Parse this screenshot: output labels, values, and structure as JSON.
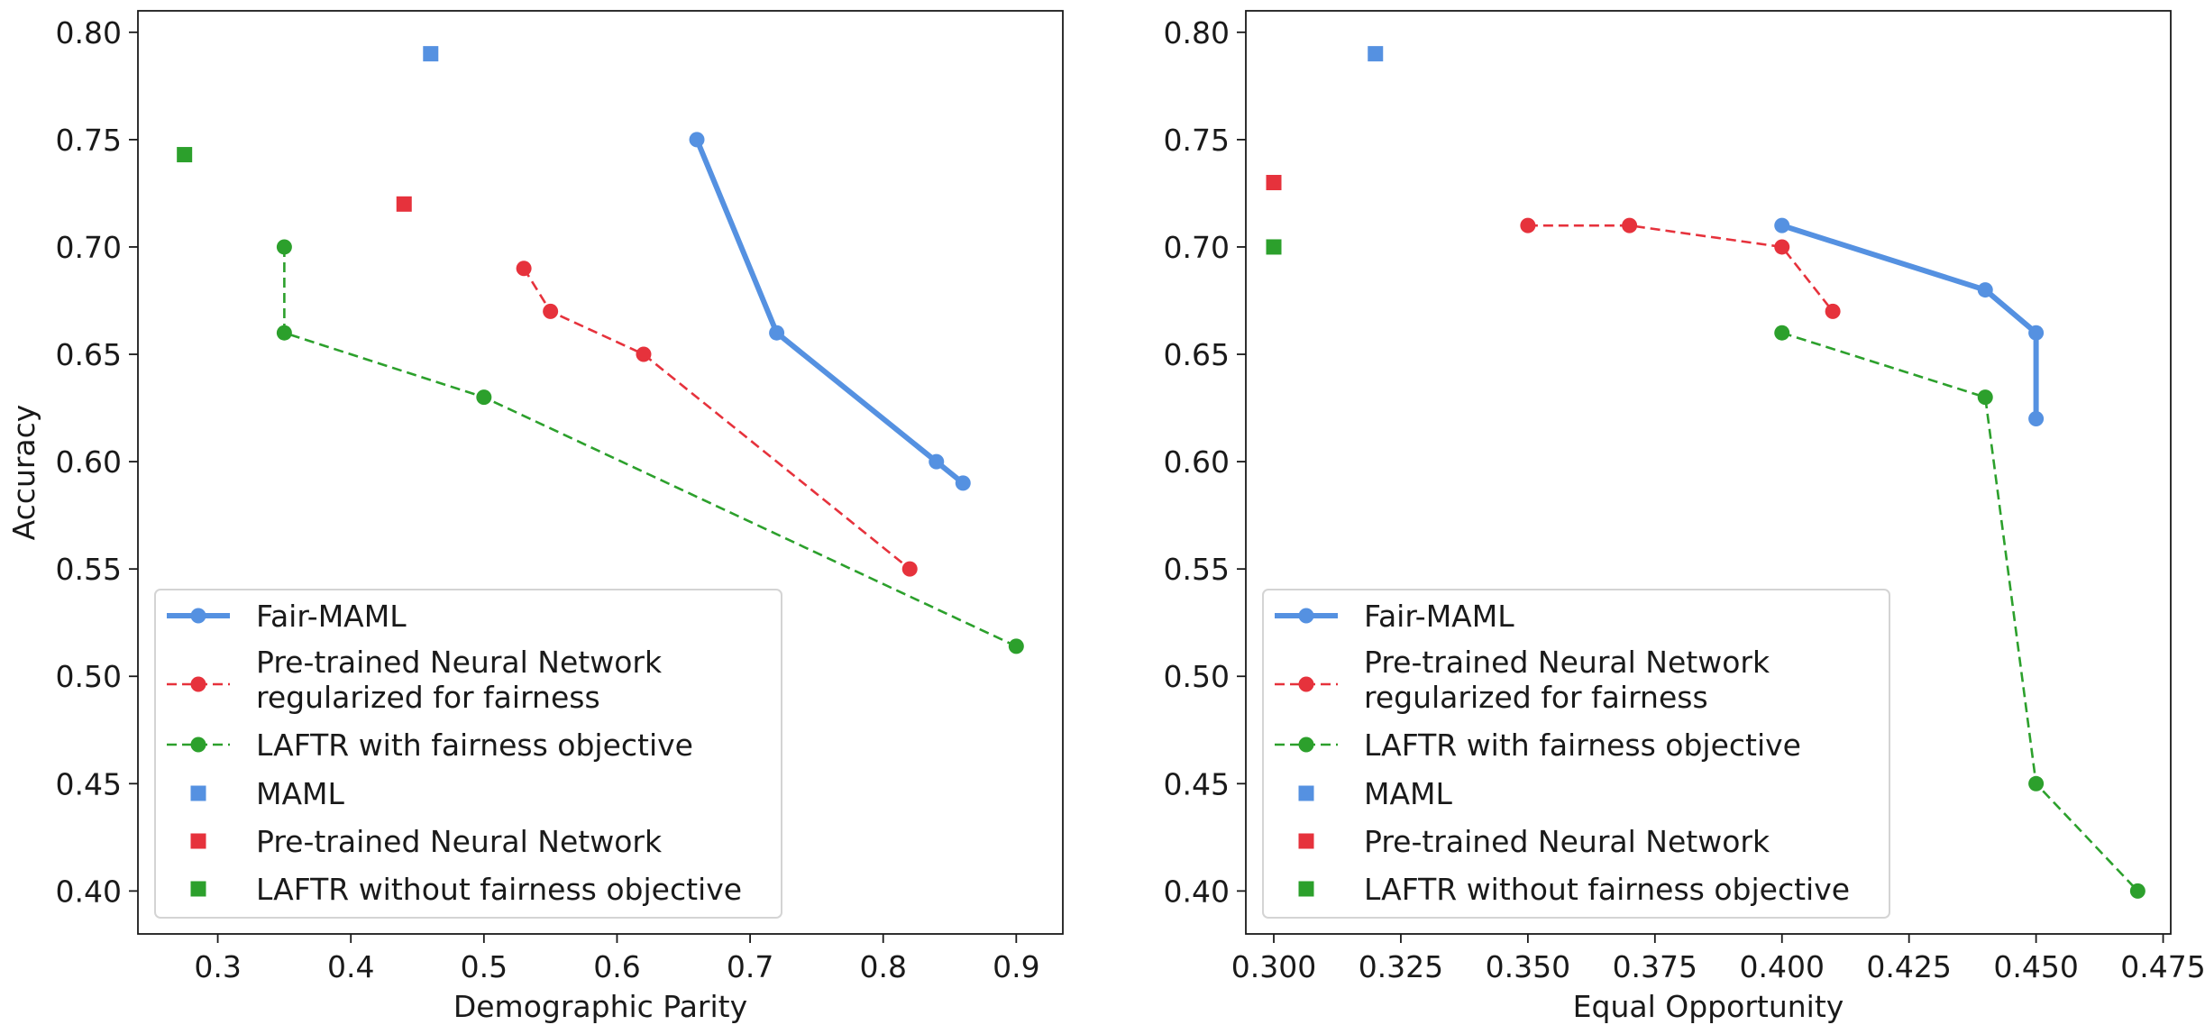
{
  "chart_data": [
    {
      "type": "line",
      "title": "",
      "xlabel": "Demographic Parity",
      "ylabel": "Accuracy",
      "xlim": [
        0.24,
        0.935
      ],
      "ylim": [
        0.38,
        0.81
      ],
      "xticks": [
        0.3,
        0.4,
        0.5,
        0.6,
        0.7,
        0.8,
        0.9
      ],
      "xtick_labels": [
        "0.3",
        "0.4",
        "0.5",
        "0.6",
        "0.7",
        "0.8",
        "0.9"
      ],
      "yticks": [
        0.4,
        0.45,
        0.5,
        0.55,
        0.6,
        0.65,
        0.7,
        0.75,
        0.8
      ],
      "ytick_labels": [
        "0.40",
        "0.45",
        "0.50",
        "0.55",
        "0.60",
        "0.65",
        "0.70",
        "0.75",
        "0.80"
      ],
      "grid": false,
      "legend_position": "lower-left",
      "series": [
        {
          "name": "Fair-MAML",
          "style": "solid-line-circle",
          "color": "#5591e1",
          "x": [
            0.66,
            0.72,
            0.84,
            0.86
          ],
          "y": [
            0.75,
            0.66,
            0.6,
            0.59
          ]
        },
        {
          "name": "Pre-trained Neural Network regularized for fairness",
          "legend_lines": [
            "Pre-trained Neural Network",
            "regularized for fairness"
          ],
          "style": "dashed-line-circle",
          "color": "#e6323c",
          "x": [
            0.53,
            0.55,
            0.62,
            0.82
          ],
          "y": [
            0.69,
            0.67,
            0.65,
            0.55
          ]
        },
        {
          "name": "LAFTR with fairness objective",
          "style": "dashed-line-circle",
          "color": "#2ca02c",
          "x": [
            0.35,
            0.35,
            0.5,
            0.9
          ],
          "y": [
            0.7,
            0.66,
            0.63,
            0.514
          ]
        },
        {
          "name": "MAML",
          "style": "square",
          "color": "#5591e1",
          "x": [
            0.46
          ],
          "y": [
            0.79
          ]
        },
        {
          "name": "Pre-trained Neural Network",
          "style": "square",
          "color": "#e6323c",
          "x": [
            0.44
          ],
          "y": [
            0.72
          ]
        },
        {
          "name": "LAFTR without fairness objective",
          "style": "square",
          "color": "#2ca02c",
          "x": [
            0.275
          ],
          "y": [
            0.743
          ]
        }
      ]
    },
    {
      "type": "line",
      "title": "",
      "xlabel": "Equal Opportunity",
      "ylabel": "",
      "xlim": [
        0.2945,
        0.4765
      ],
      "ylim": [
        0.38,
        0.81
      ],
      "xticks": [
        0.3,
        0.325,
        0.35,
        0.375,
        0.4,
        0.425,
        0.45,
        0.475
      ],
      "xtick_labels": [
        "0.300",
        "0.325",
        "0.350",
        "0.375",
        "0.400",
        "0.425",
        "0.450",
        "0.475"
      ],
      "yticks": [
        0.4,
        0.45,
        0.5,
        0.55,
        0.6,
        0.65,
        0.7,
        0.75,
        0.8
      ],
      "ytick_labels": [
        "0.40",
        "0.45",
        "0.50",
        "0.55",
        "0.60",
        "0.65",
        "0.70",
        "0.75",
        "0.80"
      ],
      "grid": false,
      "legend_position": "lower-left",
      "series": [
        {
          "name": "Fair-MAML",
          "style": "solid-line-circle",
          "color": "#5591e1",
          "x": [
            0.4,
            0.44,
            0.45,
            0.45
          ],
          "y": [
            0.71,
            0.68,
            0.66,
            0.62
          ]
        },
        {
          "name": "Pre-trained Neural Network regularized for fairness",
          "legend_lines": [
            "Pre-trained Neural Network",
            "regularized for fairness"
          ],
          "style": "dashed-line-circle",
          "color": "#e6323c",
          "x": [
            0.35,
            0.37,
            0.4,
            0.41
          ],
          "y": [
            0.71,
            0.71,
            0.7,
            0.67
          ]
        },
        {
          "name": "LAFTR with fairness objective",
          "style": "dashed-line-circle",
          "color": "#2ca02c",
          "x": [
            0.4,
            0.44,
            0.45,
            0.47
          ],
          "y": [
            0.66,
            0.63,
            0.45,
            0.4
          ]
        },
        {
          "name": "MAML",
          "style": "square",
          "color": "#5591e1",
          "x": [
            0.32
          ],
          "y": [
            0.79
          ]
        },
        {
          "name": "Pre-trained Neural Network",
          "style": "square",
          "color": "#e6323c",
          "x": [
            0.3
          ],
          "y": [
            0.73
          ]
        },
        {
          "name": "LAFTR without fairness objective",
          "style": "square",
          "color": "#2ca02c",
          "x": [
            0.3
          ],
          "y": [
            0.7
          ]
        }
      ]
    }
  ]
}
